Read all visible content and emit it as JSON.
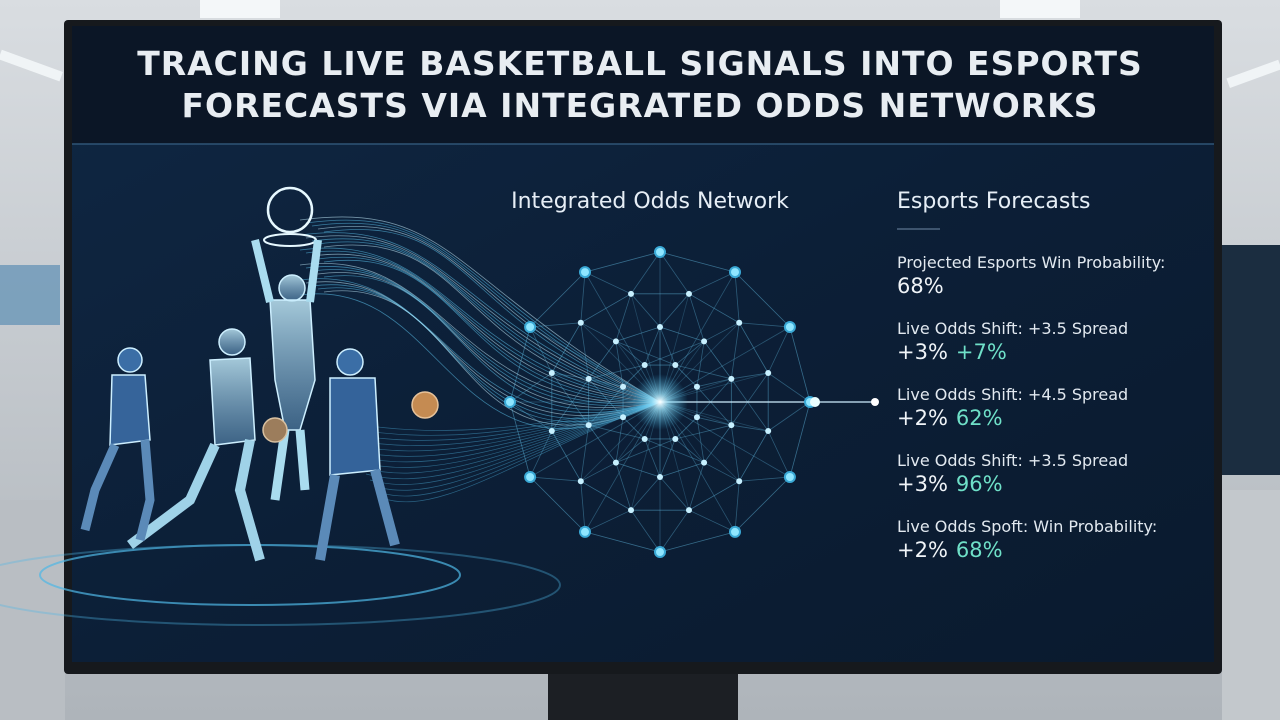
{
  "header": {
    "title_lines": [
      "TRACING LIVE BASKETBALL SIGNALS INTO ESPORTS",
      "FORECASTS VIA INTEGRATED ODDS NETWORKS"
    ]
  },
  "network": {
    "heading": "Integrated Odds Network"
  },
  "forecasts": {
    "heading": "Esports Forecasts",
    "items": [
      {
        "label": "Projected Esports Win Probability:",
        "values": [
          "68%"
        ]
      },
      {
        "label": "Live Odds Shift: +3.5 Spread",
        "values": [
          "+3%",
          "+7%"
        ]
      },
      {
        "label": "Live Odds Shift: +4.5 Spread",
        "values": [
          "+2%",
          "62%"
        ]
      },
      {
        "label": "Live Odds Shift: +3.5 Spread",
        "values": [
          "+3%",
          "96%"
        ]
      },
      {
        "label": "Live Odds Spoft: Win Probability:",
        "values": [
          "+2%",
          "68%"
        ]
      }
    ]
  }
}
